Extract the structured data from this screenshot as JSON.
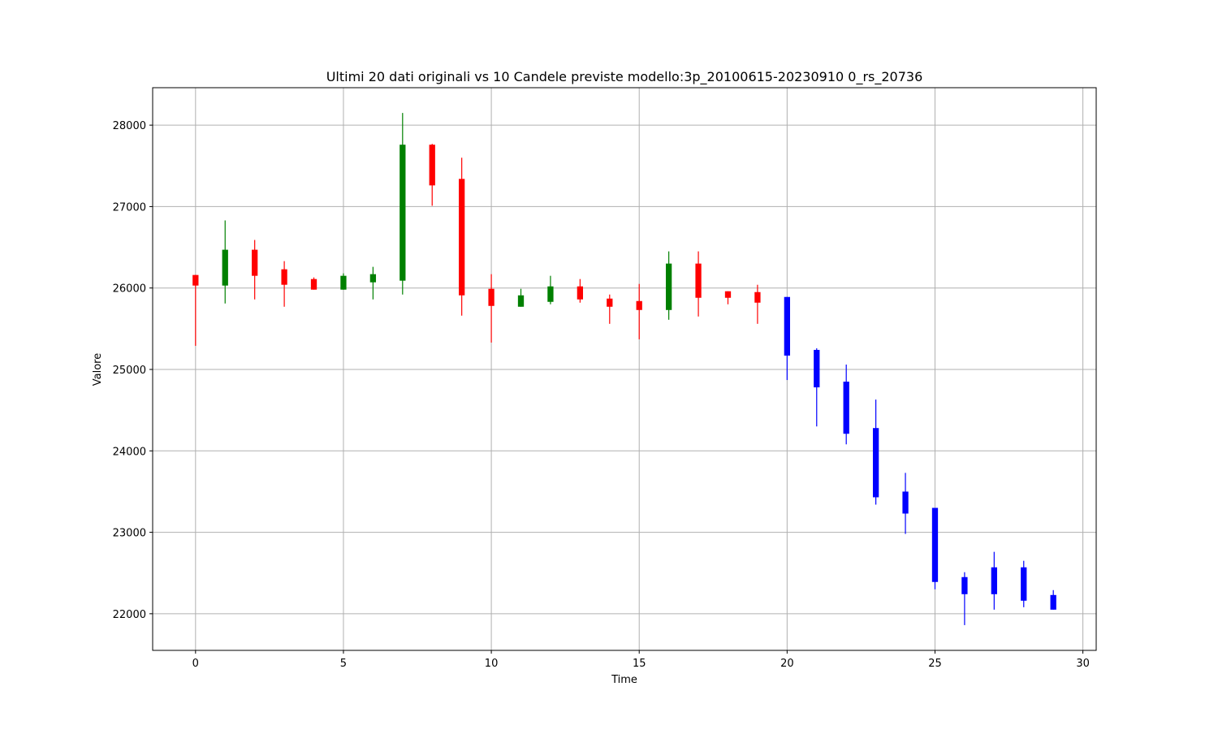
{
  "chart_data": {
    "type": "candlestick",
    "title": "Ultimi 20 dati originali vs 10 Candele previste modello:3p_20100615-20230910 0_rs_20736",
    "x_label": "Time",
    "y_label": "Valore",
    "xlim": [
      -1.45,
      30.45
    ],
    "ylim": [
      21550,
      28460
    ],
    "xticks": [
      0,
      5,
      10,
      15,
      20,
      25,
      30
    ],
    "yticks": [
      22000,
      23000,
      24000,
      25000,
      26000,
      27000,
      28000
    ],
    "grid": true,
    "series": [
      {
        "up_color": "green",
        "down_color": "red",
        "x": [
          0,
          1,
          2,
          3,
          4,
          5,
          6,
          7,
          8,
          9,
          10,
          11,
          12,
          13,
          14,
          15,
          16,
          17,
          18,
          19
        ],
        "open": [
          26160,
          26030,
          26470,
          26230,
          26110,
          25980,
          26070,
          26090,
          27760,
          27340,
          25990,
          25770,
          25830,
          26020,
          25870,
          25840,
          25730,
          26300,
          25960,
          25950
        ],
        "high": [
          26160,
          26830,
          26590,
          26330,
          26130,
          26180,
          26260,
          28150,
          27770,
          27600,
          26170,
          25990,
          26150,
          26110,
          25920,
          26050,
          26450,
          26450,
          25960,
          26040
        ],
        "low": [
          25290,
          25810,
          25860,
          25770,
          25980,
          25980,
          25860,
          25920,
          27010,
          25660,
          25330,
          25770,
          25800,
          25820,
          25560,
          25370,
          25610,
          25650,
          25800,
          25560
        ],
        "close": [
          26030,
          26470,
          26150,
          26040,
          25980,
          26150,
          26170,
          27760,
          27260,
          25910,
          25780,
          25910,
          26020,
          25860,
          25770,
          25730,
          26300,
          25880,
          25880,
          25820
        ]
      },
      {
        "color": "blue",
        "x": [
          20,
          21,
          22,
          23,
          24,
          25,
          26,
          27,
          28,
          29
        ],
        "open": [
          25890,
          25240,
          24850,
          24280,
          23500,
          23300,
          22450,
          22570,
          22570,
          22230
        ],
        "high": [
          25890,
          25260,
          25060,
          24630,
          23730,
          23300,
          22510,
          22760,
          22650,
          22290
        ],
        "low": [
          24870,
          24300,
          24080,
          23340,
          22980,
          22300,
          21860,
          22050,
          22080,
          22050
        ],
        "close": [
          25170,
          24780,
          24210,
          23430,
          23230,
          22390,
          22240,
          22240,
          22160,
          22050
        ]
      }
    ]
  }
}
